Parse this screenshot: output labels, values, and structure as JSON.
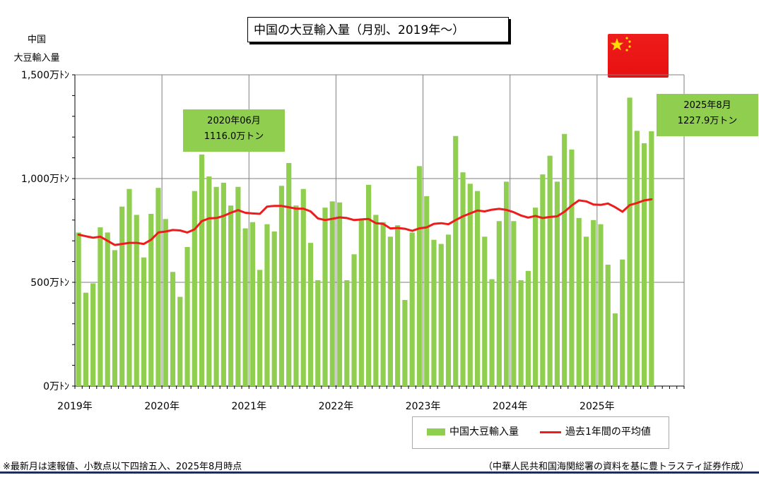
{
  "title": "中国の大豆輸入量（月別、2019年～）",
  "ylabel_line1": "中国",
  "ylabel_line2": "大豆輸入量",
  "footnote": "※最新月は速報値、小数点以下四捨五入、2025年8月時点",
  "source": "（中華人民共和国海関総署の資料を基に豊トラスティ証券作成）",
  "callouts": [
    {
      "line1": "2020年06月",
      "line2": "1116.0万トン"
    },
    {
      "line1": "2025年8月",
      "line2": "1227.9万トン"
    }
  ],
  "colors": {
    "bar": "#8fce4f",
    "line": "#ee1c1c",
    "grid": "#7f7f7f",
    "flag_red": "#ee1c1c",
    "flag_star": "#ffde00"
  },
  "flag_icon": "china-flag-icon",
  "chart_data": {
    "type": "bar",
    "ylim": [
      0,
      1500
    ],
    "yticks": [
      0,
      500,
      1000,
      1500
    ],
    "ytick_labels": [
      "0万ﾄﾝ",
      "500万ﾄﾝ",
      "1,000万ﾄﾝ",
      "1,500万ﾄﾝ"
    ],
    "x_start": "2019-01",
    "xtick_labels": [
      "2019年",
      "2020年",
      "2021年",
      "2022年",
      "2023年",
      "2024年",
      "2025年"
    ],
    "grid": true,
    "legend_position": "bottom-right",
    "series": [
      {
        "name": "中国大豆輸入量",
        "type": "bar",
        "values": [
          740,
          450,
          495,
          765,
          740,
          655,
          865,
          950,
          825,
          620,
          830,
          955,
          805,
          550,
          430,
          670,
          940,
          1116,
          1010,
          960,
          980,
          870,
          960,
          760,
          790,
          560,
          780,
          745,
          965,
          1075,
          870,
          950,
          690,
          510,
          860,
          890,
          885,
          510,
          635,
          800,
          970,
          825,
          790,
          720,
          775,
          415,
          740,
          1060,
          915,
          705,
          685,
          730,
          1205,
          1030,
          975,
          940,
          720,
          515,
          795,
          985,
          795,
          510,
          555,
          860,
          1020,
          1110,
          985,
          1215,
          1140,
          810,
          720,
          800,
          780,
          585,
          350,
          610,
          1390,
          1230,
          1170,
          1227.9
        ]
      },
      {
        "name": "過去1年間の平均値",
        "type": "line",
        "values": [
          730,
          722,
          715,
          720,
          700,
          680,
          685,
          690,
          690,
          685,
          705,
          740,
          745,
          752,
          750,
          740,
          755,
          795,
          808,
          810,
          820,
          835,
          848,
          835,
          832,
          830,
          865,
          868,
          868,
          862,
          855,
          855,
          842,
          808,
          800,
          806,
          813,
          810,
          800,
          803,
          805,
          785,
          782,
          760,
          762,
          758,
          748,
          760,
          765,
          782,
          785,
          780,
          800,
          818,
          832,
          846,
          842,
          850,
          854,
          849,
          838,
          822,
          812,
          820,
          810,
          815,
          818,
          840,
          870,
          895,
          890,
          875,
          873,
          880,
          862,
          840,
          872,
          882,
          895,
          900
        ]
      }
    ]
  }
}
